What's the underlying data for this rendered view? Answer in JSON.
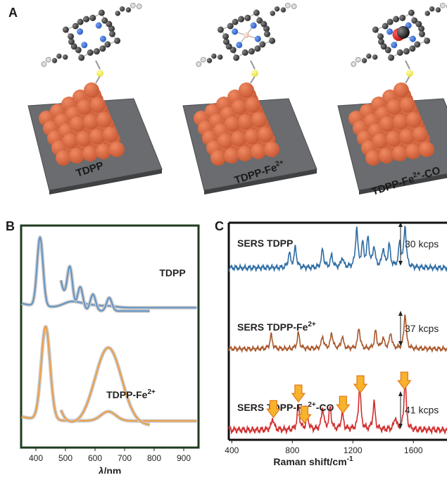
{
  "panel_letters": {
    "a": "A",
    "b": "B",
    "c": "C"
  },
  "panel_a": {
    "molecules": [
      {
        "label": "TDPP",
        "center": "none"
      },
      {
        "label": "TDPP-Fe",
        "sup": "2+",
        "center": "Fe"
      },
      {
        "label": "TDPP-Fe",
        "sup": "2+",
        "suffix": "-CO",
        "center": "Fe-CO"
      }
    ],
    "colors": {
      "substrate": "#6a6c6f",
      "sphere": "#c85a35",
      "carbon": "#2a2a2a",
      "nitrogen": "#2a5ec4",
      "sulfur": "#e8e23a",
      "iron": "#e8b9a0",
      "oxygen": "#c01010"
    }
  },
  "chart_data": [
    {
      "type": "line",
      "panel": "B",
      "xlabel_symbol": "λ",
      "xlabel_unit": "/nm",
      "xlim": [
        350,
        950
      ],
      "xticks": [
        400,
        500,
        600,
        700,
        800,
        900
      ],
      "ylabel": "",
      "frame_color": "#1e3b1e",
      "series": [
        {
          "name": "TDPP",
          "name_sup": "",
          "color": "#5b8fc4",
          "base": 0.63,
          "soret_peak": 414,
          "soret_height": 0.31,
          "soret_width": 10,
          "q_bands": [
            [
              515,
              0.175
            ],
            [
              550,
              0.105
            ],
            [
              593,
              0.075
            ],
            [
              648,
              0.06
            ]
          ],
          "q_range": [
            485,
            785
          ],
          "q_baseline": 0.615,
          "q_rise": 0.46
        },
        {
          "name": "TDPP-Fe",
          "name_sup": "2+",
          "color": "#f29a38",
          "base": 0.12,
          "soret_peak": 433,
          "soret_height": 0.42,
          "soret_width": 15,
          "q_bands": [
            [
              645,
              0.35
            ]
          ],
          "q_range": [
            485,
            785
          ],
          "q_baseline": 0.1,
          "q_rise": 0.23
        }
      ]
    },
    {
      "type": "line",
      "panel": "C",
      "xlabel": "Raman shift/cm",
      "xlabel_sup": "-1",
      "xlim": [
        380,
        1850
      ],
      "xticks": [
        400,
        800,
        1200,
        1600
      ],
      "ylabel": "",
      "series": [
        {
          "name": "SERS TDPP",
          "name_sup": "",
          "name_suffix": "",
          "color": "#2e6da4",
          "scale_bar": "30 kcps",
          "peaks": [
            [
              780,
              0.35
            ],
            [
              820,
              0.5
            ],
            [
              1000,
              0.45
            ],
            [
              1060,
              0.3
            ],
            [
              1130,
              0.25
            ],
            [
              1225,
              0.95
            ],
            [
              1265,
              0.55
            ],
            [
              1300,
              0.7
            ],
            [
              1340,
              0.5
            ],
            [
              1400,
              0.45
            ],
            [
              1440,
              0.55
            ],
            [
              1510,
              0.6
            ],
            [
              1545,
              1.0
            ]
          ]
        },
        {
          "name": "SERS TDPP-Fe",
          "name_sup": "2+",
          "name_suffix": "",
          "color": "#a8572a",
          "scale_bar": "37 kcps",
          "peaks": [
            [
              660,
              0.4
            ],
            [
              840,
              0.45
            ],
            [
              1000,
              0.35
            ],
            [
              1060,
              0.45
            ],
            [
              1130,
              0.35
            ],
            [
              1240,
              0.6
            ],
            [
              1350,
              0.5
            ],
            [
              1400,
              0.3
            ],
            [
              1450,
              0.45
            ],
            [
              1545,
              1.0
            ]
          ]
        },
        {
          "name": "SERS TDPP-Fe",
          "name_sup": "2+",
          "name_suffix": "-CO",
          "color": "#d12e2e",
          "scale_bar": "41 kcps",
          "peaks": [
            [
              670,
              0.25
            ],
            [
              840,
              0.5
            ],
            [
              900,
              0.3
            ],
            [
              1000,
              0.45
            ],
            [
              1050,
              0.45
            ],
            [
              1130,
              0.35
            ],
            [
              1245,
              0.9
            ],
            [
              1340,
              0.55
            ],
            [
              1480,
              0.25
            ],
            [
              1545,
              1.0
            ]
          ],
          "arrows": [
            675,
            840,
            880,
            1135,
            1250,
            1540
          ]
        }
      ]
    }
  ]
}
